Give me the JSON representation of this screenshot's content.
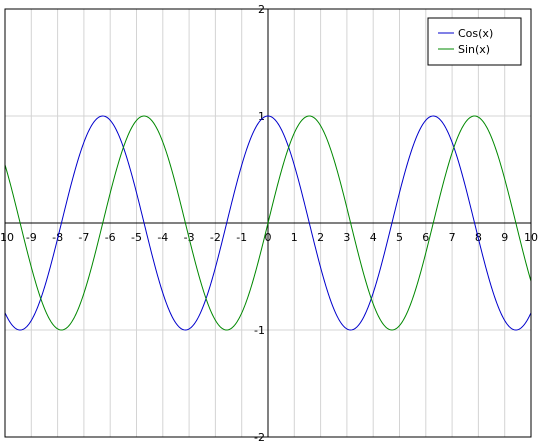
{
  "chart_data": {
    "type": "line",
    "title": "",
    "xlabel": "",
    "ylabel": "",
    "xlim": [
      -10,
      10
    ],
    "ylim": [
      -2,
      2
    ],
    "grid": true,
    "legend_placement": "top-right",
    "x_tick_labels": [
      "-10",
      "-9",
      "-8",
      "-7",
      "-6",
      "-5",
      "-4",
      "-3",
      "-2",
      "-1",
      "0",
      "1",
      "2",
      "3",
      "4",
      "5",
      "6",
      "7",
      "8",
      "9",
      "10"
    ],
    "y_tick_labels": [
      "2",
      "1",
      "-1",
      "-2"
    ],
    "colors": {
      "grid": "#d4d4d4",
      "axis": "#000000",
      "frame": "#000000",
      "cos": "#0000cc",
      "sin": "#008800"
    },
    "series": [
      {
        "name": "Cos(x)",
        "function": "cos",
        "x_step": 0.5,
        "x": [
          -10,
          -9.5,
          -9,
          -8.5,
          -8,
          -7.5,
          -7,
          -6.5,
          -6,
          -5.5,
          -5,
          -4.5,
          -4,
          -3.5,
          -3,
          -2.5,
          -2,
          -1.5,
          -1,
          -0.5,
          0,
          0.5,
          1,
          1.5,
          2,
          2.5,
          3,
          3.5,
          4,
          4.5,
          5,
          5.5,
          6,
          6.5,
          7,
          7.5,
          8,
          8.5,
          9,
          9.5,
          10
        ],
        "values": [
          -0.84,
          -0.997,
          -0.91,
          -0.6,
          -0.15,
          0.35,
          0.75,
          0.98,
          0.96,
          0.71,
          0.28,
          -0.21,
          -0.65,
          -0.94,
          -0.99,
          -0.8,
          -0.42,
          0.07,
          0.54,
          0.88,
          1,
          0.88,
          0.54,
          0.07,
          -0.42,
          -0.8,
          -0.99,
          -0.94,
          -0.65,
          -0.21,
          0.28,
          0.71,
          0.96,
          0.98,
          0.75,
          0.35,
          -0.15,
          -0.6,
          -0.91,
          -0.997,
          -0.84
        ]
      },
      {
        "name": "Sin(x)",
        "function": "sin",
        "x_step": 0.5,
        "x": [
          -10,
          -9.5,
          -9,
          -8.5,
          -8,
          -7.5,
          -7,
          -6.5,
          -6,
          -5.5,
          -5,
          -4.5,
          -4,
          -3.5,
          -3,
          -2.5,
          -2,
          -1.5,
          -1,
          -0.5,
          0,
          0.5,
          1,
          1.5,
          2,
          2.5,
          3,
          3.5,
          4,
          4.5,
          5,
          5.5,
          6,
          6.5,
          7,
          7.5,
          8,
          8.5,
          9,
          9.5,
          10
        ],
        "values": [
          0.54,
          0.08,
          -0.41,
          -0.8,
          -0.99,
          -0.94,
          -0.66,
          -0.22,
          0.28,
          0.71,
          0.96,
          0.98,
          0.76,
          0.35,
          -0.14,
          -0.6,
          -0.91,
          -0.997,
          -0.84,
          -0.48,
          0,
          0.48,
          0.84,
          0.997,
          0.91,
          0.6,
          0.14,
          -0.35,
          -0.76,
          -0.98,
          -0.96,
          -0.71,
          -0.28,
          0.22,
          0.66,
          0.94,
          0.99,
          0.8,
          0.41,
          -0.08,
          -0.54
        ]
      }
    ]
  }
}
